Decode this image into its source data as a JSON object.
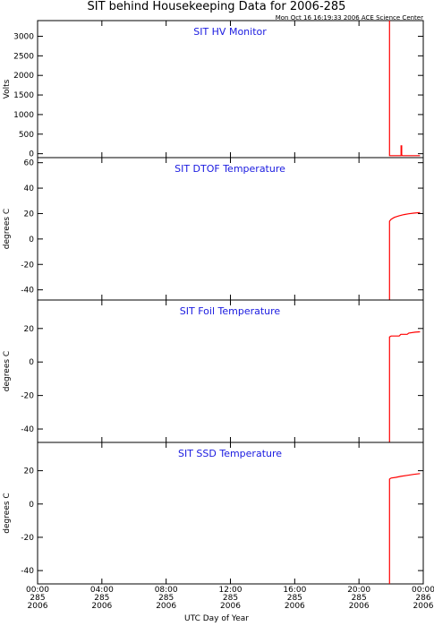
{
  "title": "SIT behind Housekeeping Data for 2006-285",
  "timestamp": "Mon Oct 16 16:19:33 2006 ACE Science Center",
  "xlabel": "UTC Day of Year",
  "colors": {
    "trace": "#ff0000",
    "panel_title": "#1a1ae0",
    "axes": "#000000"
  },
  "x_ticks": [
    {
      "hour": 0,
      "time": "00:00",
      "doy": "285",
      "year": "2006"
    },
    {
      "hour": 4,
      "time": "04:00",
      "doy": "285",
      "year": "2006"
    },
    {
      "hour": 8,
      "time": "08:00",
      "doy": "285",
      "year": "2006"
    },
    {
      "hour": 12,
      "time": "12:00",
      "doy": "285",
      "year": "2006"
    },
    {
      "hour": 16,
      "time": "16:00",
      "doy": "285",
      "year": "2006"
    },
    {
      "hour": 20,
      "time": "20:00",
      "doy": "285",
      "year": "2006"
    },
    {
      "hour": 24,
      "time": "00:00",
      "doy": "286",
      "year": "2006"
    }
  ],
  "chart_data": [
    {
      "type": "line",
      "title": "SIT HV Monitor",
      "ylabel": "Volts",
      "xlim": [
        0,
        24
      ],
      "ylim": [
        -100,
        3400
      ],
      "yticks": [
        0,
        500,
        1000,
        1500,
        2000,
        2500,
        3000
      ],
      "series": [
        {
          "x": [
            21.9,
            21.9,
            22.02,
            22.5,
            22.62,
            22.62,
            22.66,
            22.66,
            22.7,
            23.5,
            23.8
          ],
          "y": [
            3400,
            -50,
            -50,
            -50,
            -50,
            200,
            200,
            -30,
            -50,
            -50,
            -50
          ]
        }
      ]
    },
    {
      "type": "line",
      "title": "SIT DTOF Temperature",
      "ylabel": "degrees C",
      "xlim": [
        0,
        24
      ],
      "ylim": [
        -48,
        64
      ],
      "yticks": [
        -40,
        -20,
        0,
        20,
        40,
        60
      ],
      "series": [
        {
          "x": [
            21.9,
            21.9,
            22.0,
            22.2,
            22.5,
            22.8,
            23.1,
            23.4,
            23.8
          ],
          "y": [
            -48,
            14,
            15.5,
            17,
            18.3,
            19.2,
            19.8,
            20.3,
            20.8
          ]
        }
      ]
    },
    {
      "type": "line",
      "title": "SIT Foil Temperature",
      "ylabel": "degrees C",
      "xlim": [
        0,
        24
      ],
      "ylim": [
        -48,
        37
      ],
      "yticks": [
        -40,
        -20,
        0,
        20
      ],
      "series": [
        {
          "x": [
            21.9,
            21.9,
            22.0,
            22.5,
            22.6,
            23.0,
            23.1,
            23.5,
            23.8
          ],
          "y": [
            -48,
            15,
            15.5,
            15.5,
            16.5,
            16.5,
            17.3,
            17.8,
            18.0
          ]
        }
      ]
    },
    {
      "type": "line",
      "title": "SIT SSD Temperature",
      "ylabel": "degrees C",
      "xlim": [
        0,
        24
      ],
      "ylim": [
        -48,
        37
      ],
      "yticks": [
        -40,
        -20,
        0,
        20
      ],
      "series": [
        {
          "x": [
            21.9,
            21.9,
            22.0,
            22.3,
            22.6,
            23.0,
            23.4,
            23.8
          ],
          "y": [
            -48,
            15,
            15.6,
            16.0,
            16.6,
            17.2,
            17.8,
            18.3
          ]
        }
      ]
    }
  ]
}
